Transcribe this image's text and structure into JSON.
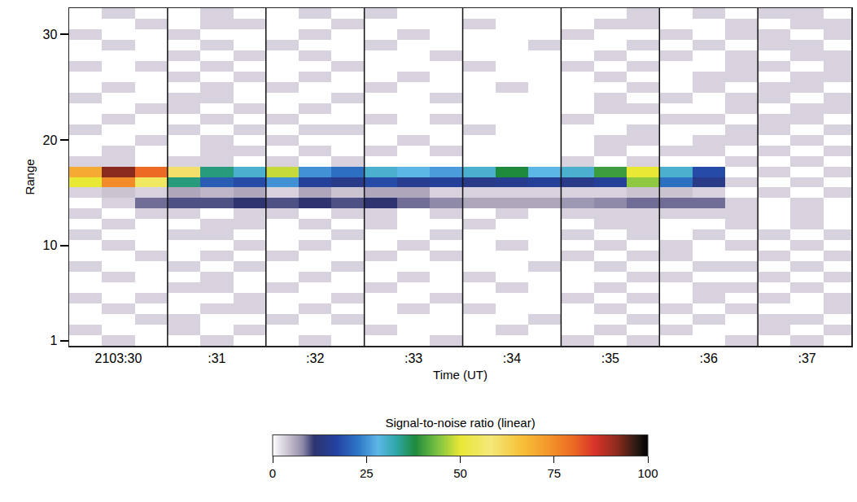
{
  "chart_data": {
    "type": "heatmap",
    "xlabel": "Time (UT)",
    "ylabel": "Range",
    "x": [
      29.667,
      30,
      30.333,
      30.667,
      31,
      31.333,
      31.667,
      32,
      32.333,
      32.667,
      33,
      33.333,
      33.667,
      34,
      34.333,
      34.667,
      35,
      35.333,
      35.667,
      36,
      36.333,
      36.667,
      37,
      37.333
    ],
    "y": [
      1,
      2,
      3,
      4,
      5,
      6,
      7,
      8,
      9,
      10,
      11,
      12,
      13,
      14,
      15,
      16,
      17,
      18,
      19,
      20,
      21,
      22,
      23,
      24,
      25,
      26,
      27,
      28,
      29,
      30,
      31,
      32
    ],
    "z": [
      [
        0,
        3,
        0,
        0,
        3,
        0,
        0,
        3,
        0,
        0,
        0,
        3,
        0,
        0,
        0,
        3,
        0,
        3,
        0,
        0,
        3,
        0,
        3,
        0
      ],
      [
        3,
        0,
        0,
        3,
        0,
        3,
        0,
        0,
        0,
        3,
        0,
        0,
        0,
        3,
        0,
        0,
        3,
        0,
        3,
        0,
        0,
        3,
        0,
        3
      ],
      [
        0,
        0,
        3,
        3,
        0,
        0,
        3,
        0,
        3,
        0,
        0,
        0,
        0,
        0,
        3,
        0,
        0,
        3,
        0,
        3,
        0,
        3,
        3,
        0
      ],
      [
        0,
        3,
        0,
        0,
        3,
        3,
        0,
        3,
        0,
        0,
        3,
        0,
        3,
        0,
        0,
        0,
        3,
        0,
        3,
        0,
        3,
        0,
        0,
        3
      ],
      [
        3,
        0,
        3,
        0,
        0,
        3,
        0,
        0,
        3,
        0,
        0,
        3,
        0,
        0,
        0,
        3,
        0,
        3,
        0,
        3,
        0,
        3,
        0,
        3
      ],
      [
        0,
        0,
        0,
        3,
        3,
        0,
        3,
        0,
        0,
        3,
        0,
        0,
        0,
        3,
        0,
        0,
        3,
        0,
        0,
        3,
        3,
        0,
        3,
        0
      ],
      [
        0,
        3,
        0,
        0,
        3,
        0,
        0,
        3,
        0,
        0,
        3,
        0,
        3,
        0,
        0,
        0,
        0,
        3,
        3,
        0,
        0,
        3,
        0,
        3
      ],
      [
        3,
        0,
        0,
        3,
        0,
        3,
        0,
        0,
        3,
        0,
        0,
        0,
        0,
        0,
        3,
        0,
        3,
        0,
        0,
        3,
        3,
        0,
        3,
        0
      ],
      [
        0,
        0,
        3,
        0,
        3,
        0,
        3,
        0,
        0,
        3,
        0,
        3,
        0,
        0,
        0,
        3,
        0,
        3,
        3,
        0,
        0,
        3,
        0,
        3
      ],
      [
        0,
        3,
        0,
        0,
        0,
        3,
        0,
        3,
        0,
        0,
        3,
        0,
        0,
        3,
        0,
        0,
        3,
        0,
        3,
        0,
        3,
        0,
        3,
        0
      ],
      [
        3,
        0,
        0,
        3,
        3,
        0,
        0,
        0,
        3,
        0,
        0,
        3,
        0,
        0,
        0,
        3,
        0,
        3,
        0,
        3,
        0,
        3,
        0,
        3
      ],
      [
        0,
        3,
        0,
        0,
        3,
        3,
        0,
        3,
        0,
        3,
        0,
        0,
        3,
        0,
        0,
        0,
        3,
        3,
        0,
        0,
        3,
        0,
        3,
        0
      ],
      [
        3,
        0,
        3,
        3,
        0,
        3,
        3,
        0,
        3,
        3,
        0,
        3,
        0,
        3,
        0,
        3,
        3,
        3,
        3,
        3,
        3,
        0,
        3,
        0
      ],
      [
        0,
        3,
        9,
        10,
        10,
        11,
        10,
        11,
        10,
        11,
        9,
        8,
        6,
        6,
        6,
        7,
        8,
        9,
        9,
        9,
        3,
        0,
        3,
        0
      ],
      [
        3,
        4,
        3,
        6,
        5,
        6,
        3,
        6,
        4,
        6,
        6,
        3,
        3,
        3,
        3,
        3,
        3,
        4,
        4,
        3,
        0,
        3,
        0,
        3
      ],
      [
        50,
        75,
        55,
        35,
        20,
        18,
        25,
        16,
        14,
        18,
        15,
        16,
        14,
        15,
        16,
        14,
        16,
        45,
        22,
        14,
        3,
        0,
        3,
        0
      ],
      [
        70,
        92,
        80,
        60,
        35,
        30,
        48,
        25,
        22,
        30,
        28,
        26,
        30,
        38,
        28,
        30,
        40,
        50,
        30,
        18,
        0,
        3,
        0,
        3
      ],
      [
        3,
        3,
        0,
        3,
        3,
        0,
        3,
        0,
        3,
        0,
        0,
        0,
        0,
        0,
        0,
        3,
        0,
        3,
        0,
        0,
        3,
        0,
        3,
        0
      ],
      [
        0,
        3,
        0,
        0,
        3,
        3,
        0,
        3,
        0,
        3,
        0,
        3,
        0,
        0,
        0,
        0,
        3,
        0,
        3,
        3,
        0,
        3,
        0,
        3
      ],
      [
        0,
        0,
        3,
        0,
        3,
        0,
        3,
        0,
        0,
        0,
        3,
        0,
        0,
        0,
        0,
        0,
        3,
        3,
        0,
        3,
        3,
        0,
        3,
        0
      ],
      [
        3,
        0,
        0,
        3,
        0,
        3,
        0,
        3,
        3,
        0,
        0,
        0,
        3,
        0,
        0,
        0,
        0,
        3,
        0,
        0,
        3,
        3,
        0,
        3
      ],
      [
        0,
        3,
        0,
        0,
        3,
        0,
        3,
        0,
        0,
        3,
        0,
        3,
        0,
        0,
        0,
        3,
        0,
        0,
        3,
        3,
        0,
        3,
        3,
        0
      ],
      [
        0,
        0,
        3,
        3,
        0,
        3,
        0,
        3,
        0,
        0,
        0,
        0,
        0,
        0,
        0,
        0,
        3,
        3,
        0,
        0,
        3,
        0,
        3,
        3
      ],
      [
        3,
        0,
        0,
        3,
        3,
        0,
        0,
        0,
        3,
        0,
        0,
        3,
        0,
        0,
        0,
        0,
        3,
        0,
        3,
        0,
        3,
        3,
        0,
        3
      ],
      [
        0,
        3,
        0,
        0,
        3,
        0,
        3,
        0,
        0,
        3,
        0,
        0,
        0,
        3,
        0,
        0,
        0,
        3,
        0,
        3,
        0,
        3,
        3,
        0
      ],
      [
        0,
        0,
        0,
        3,
        0,
        3,
        0,
        3,
        0,
        0,
        3,
        0,
        0,
        0,
        0,
        0,
        3,
        0,
        0,
        3,
        3,
        0,
        3,
        3
      ],
      [
        3,
        0,
        3,
        0,
        3,
        0,
        0,
        0,
        3,
        0,
        0,
        0,
        3,
        0,
        0,
        3,
        0,
        3,
        0,
        0,
        3,
        3,
        0,
        3
      ],
      [
        0,
        0,
        0,
        3,
        0,
        3,
        0,
        3,
        0,
        0,
        0,
        3,
        0,
        0,
        0,
        0,
        3,
        0,
        3,
        0,
        3,
        0,
        3,
        3
      ],
      [
        0,
        3,
        0,
        0,
        3,
        0,
        3,
        0,
        0,
        3,
        0,
        0,
        0,
        0,
        3,
        0,
        0,
        3,
        0,
        3,
        0,
        3,
        3,
        0
      ],
      [
        3,
        0,
        0,
        3,
        0,
        0,
        0,
        3,
        0,
        0,
        3,
        0,
        0,
        0,
        0,
        3,
        0,
        0,
        3,
        0,
        3,
        3,
        0,
        3
      ],
      [
        0,
        0,
        3,
        0,
        3,
        3,
        0,
        0,
        3,
        0,
        0,
        0,
        3,
        0,
        0,
        0,
        3,
        3,
        0,
        0,
        3,
        0,
        3,
        3
      ],
      [
        0,
        3,
        0,
        0,
        3,
        0,
        0,
        3,
        0,
        3,
        0,
        0,
        0,
        0,
        0,
        0,
        0,
        3,
        0,
        3,
        0,
        3,
        3,
        0
      ]
    ],
    "xlim": [
      29.5,
      37.45
    ],
    "ylim": [
      0.5,
      32.5
    ],
    "xticks": [
      {
        "value": 30,
        "label": "2103:30"
      },
      {
        "value": 31,
        "label": ":31"
      },
      {
        "value": 32,
        "label": ":32"
      },
      {
        "value": 33,
        "label": ":33"
      },
      {
        "value": 34,
        "label": ":34"
      },
      {
        "value": 35,
        "label": ":35"
      },
      {
        "value": 36,
        "label": ":36"
      },
      {
        "value": 37,
        "label": ":37"
      }
    ],
    "yticks": [
      1,
      10,
      20,
      30
    ],
    "grid": false,
    "colorbar": {
      "title": "Signal-to-noise ratio (linear)",
      "range": [
        0,
        100
      ],
      "ticks": [
        0,
        25,
        50,
        75,
        100
      ]
    }
  }
}
